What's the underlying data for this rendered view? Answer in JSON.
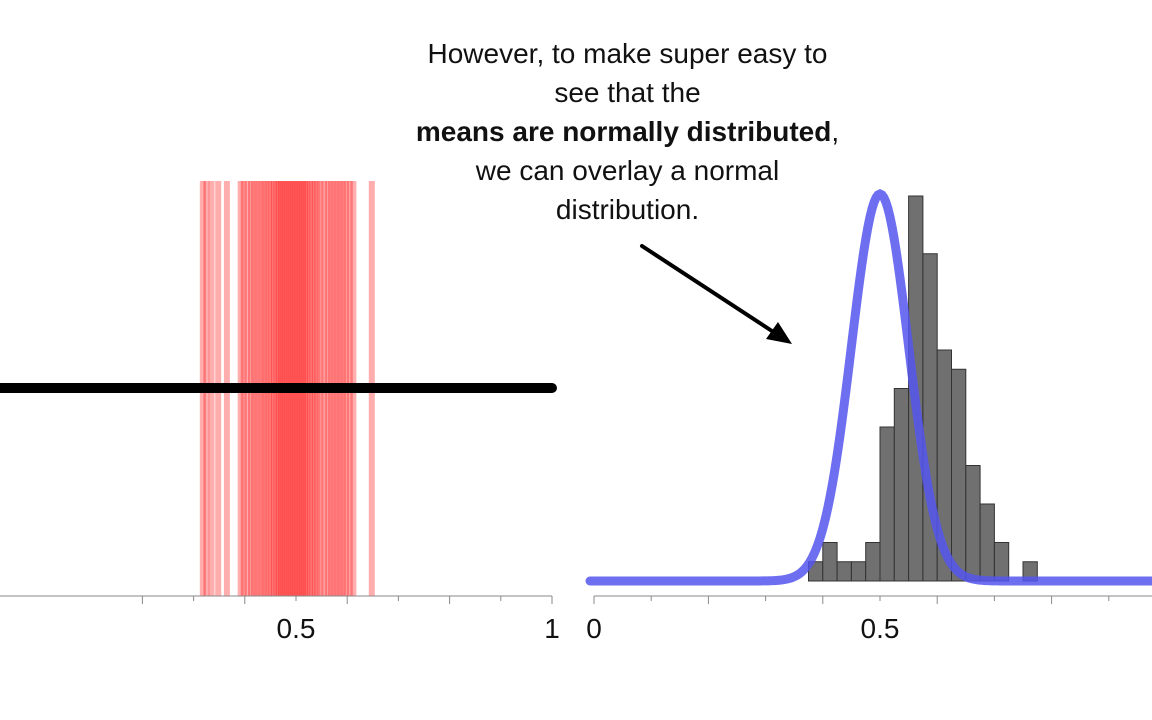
{
  "annotation": {
    "line1": "However, to make super easy to",
    "line2": "see that the",
    "line3_bold": "means are normally distributed",
    "line3_tail": ",",
    "line4": "we can overlay a normal",
    "line5": "distribution."
  },
  "chart_data": [
    {
      "type": "strip",
      "xlim": [
        0,
        1
      ],
      "tick_labels": [
        "0.5",
        "1"
      ],
      "tick_values": [
        0.5,
        1
      ],
      "line_color": "#000000",
      "strip_color": "#ff0000",
      "sample_means": [
        0.318,
        0.325,
        0.335,
        0.348,
        0.365,
        0.392,
        0.398,
        0.405,
        0.412,
        0.418,
        0.424,
        0.43,
        0.436,
        0.441,
        0.447,
        0.452,
        0.457,
        0.462,
        0.466,
        0.47,
        0.474,
        0.478,
        0.482,
        0.486,
        0.49,
        0.494,
        0.498,
        0.502,
        0.506,
        0.51,
        0.514,
        0.518,
        0.522,
        0.527,
        0.532,
        0.537,
        0.542,
        0.548,
        0.555,
        0.562,
        0.568,
        0.574,
        0.58,
        0.586,
        0.592,
        0.598,
        0.605,
        0.612,
        0.648
      ]
    },
    {
      "type": "histogram",
      "xlim": [
        0,
        1
      ],
      "tick_labels": [
        "0",
        "0.5"
      ],
      "tick_values": [
        0,
        0.5
      ],
      "bar_color": "#707070",
      "curve_color": "#5555ee",
      "bin_width": 0.025,
      "bins_start": [
        0.375,
        0.4,
        0.425,
        0.45,
        0.475,
        0.5,
        0.525,
        0.55,
        0.575,
        0.6,
        0.625,
        0.65,
        0.675,
        0.7,
        0.725,
        0.75,
        0.775
      ],
      "counts": [
        1,
        2,
        1,
        1,
        2,
        8,
        10,
        20,
        17,
        12,
        11,
        6,
        4,
        2,
        0,
        1,
        0
      ],
      "normal_mean": 0.5,
      "normal_sd": 0.05
    }
  ]
}
